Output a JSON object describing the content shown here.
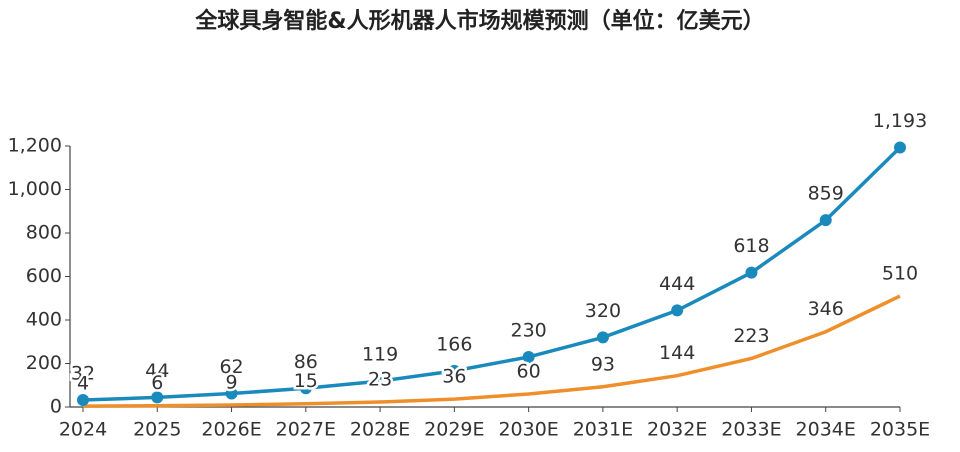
{
  "chart_data": {
    "type": "line",
    "title": "全球具身智能&人形机器人市场规模预测（单位：亿美元）",
    "categories": [
      "2024",
      "2025",
      "2026E",
      "2027E",
      "2028E",
      "2029E",
      "2030E",
      "2031E",
      "2032E",
      "2033E",
      "2034E",
      "2035E"
    ],
    "series": [
      {
        "color": "#1a8abd",
        "markers": true,
        "values": [
          32,
          44,
          62,
          86,
          119,
          166,
          230,
          320,
          444,
          618,
          859,
          1193
        ],
        "value_labels": [
          "32",
          "44",
          "62",
          "86",
          "119",
          "166",
          "230",
          "320",
          "444",
          "618",
          "859",
          "1,193"
        ]
      },
      {
        "color": "#ef8f2c",
        "markers": false,
        "values": [
          4,
          6,
          9,
          15,
          23,
          36,
          60,
          93,
          144,
          223,
          346,
          510
        ]
      }
    ],
    "ylim": [
      0,
      1200
    ],
    "yticks": [
      0,
      200,
      400,
      600,
      800,
      {
        "value": 1000,
        "label": "1,000"
      },
      {
        "value": 1200,
        "label": "1,200"
      }
    ],
    "grid": false
  }
}
